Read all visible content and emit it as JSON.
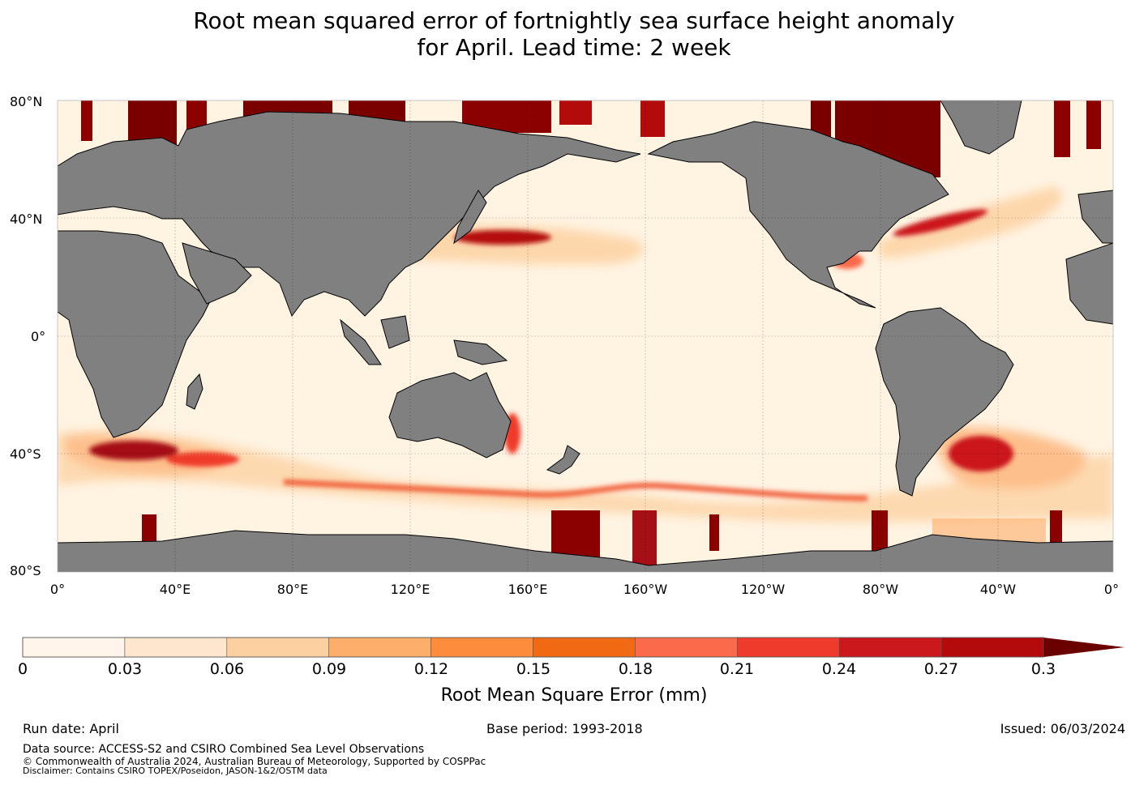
{
  "title": {
    "line1": "Root mean squared error of fortnightly sea surface height anomaly",
    "line2": "for April. Lead time: 2 week"
  },
  "map": {
    "lat_labels": [
      "80°N",
      "40°N",
      "0°",
      "40°S",
      "80°S"
    ],
    "lon_labels": [
      "0°",
      "40°E",
      "80°E",
      "120°E",
      "160°E",
      "160°W",
      "120°W",
      "80°W",
      "40°W",
      "0°"
    ],
    "land_color": "#808080",
    "ocean_base_color": "#fff5e6"
  },
  "colorbar": {
    "label": "Root Mean Square Error (mm)",
    "ticks": [
      "0",
      "0.03",
      "0.06",
      "0.09",
      "0.12",
      "0.15",
      "0.18",
      "0.21",
      "0.24",
      "0.27",
      "0.3"
    ],
    "colors": [
      "#fff5eb",
      "#fee6ce",
      "#fdd0a2",
      "#fdae6b",
      "#fd8d3c",
      "#f16913",
      "#fb6a4a",
      "#ef3b2c",
      "#cb181d",
      "#b30b0b",
      "#8b0000"
    ],
    "extend_color": "#6b0000"
  },
  "footer": {
    "run_date": "Run date: April",
    "base_period": "Base period: 1993-2018",
    "issued": "Issued: 06/03/2024",
    "data_source": "Data source: ACCESS-S2 and CSIRO Combined Sea Level Observations",
    "copyright": "© Commonwealth of Australia 2024, Australian Bureau of Meteorology, Supported by COSPPac",
    "disclaimer": "Disclaimer: Contains CSIRO TOPEX/Poseidon, JASON-1&2/OSTM data"
  }
}
